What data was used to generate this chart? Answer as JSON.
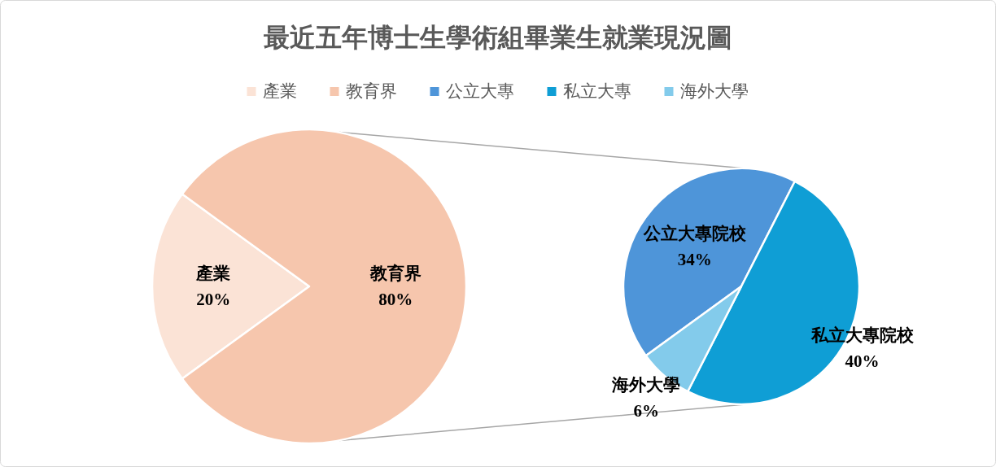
{
  "chart_data": [
    {
      "type": "pie",
      "title": "最近五年博士生學術組畢業生就業現況圖",
      "categories": [
        "產業",
        "教育界"
      ],
      "values": [
        20,
        80
      ],
      "colors": [
        "#fbe3d6",
        "#f6c6ad"
      ],
      "value_labels": [
        "產業 20%",
        "教育界 80%"
      ],
      "legend": "top"
    },
    {
      "type": "pie",
      "categories": [
        "公立大專",
        "私立大專",
        "海外大學"
      ],
      "values": [
        34,
        40,
        6
      ],
      "colors": [
        "#4e95d9",
        "#0f9ed5",
        "#83cbeb"
      ],
      "value_labels": [
        "公立大專院校 34%",
        "私立大專院校 40%",
        "海外大學 6%"
      ],
      "legend": "top"
    }
  ]
}
